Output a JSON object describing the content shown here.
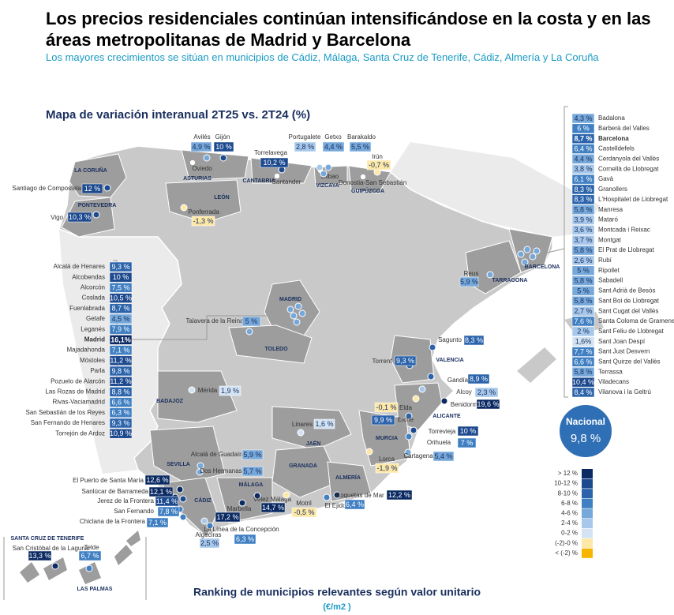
{
  "header": {
    "title": "Los precios residenciales continúan intensificándose en la costa y en las áreas metropolitanas de Madrid y Barcelona",
    "subtitle": "Los mayores crecimientos se sitúan en municipios de Cádiz, Málaga, Santa Cruz de Tenerife, Cádiz, Almería y La Coruña"
  },
  "map_title": "Mapa de variación interanual  2T25 vs. 2T24 (%)",
  "regions": [
    "LA CORUÑA",
    "ASTURIAS",
    "LEÓN",
    "PONTEVEDRA",
    "CANTABRIA",
    "VIZCAYA",
    "GUIPÚZCOA",
    "MADRID",
    "TOLEDO",
    "BADAJOZ",
    "VALENCIA",
    "ALICANTE",
    "MURCIA",
    "JAÉN",
    "GRANADA",
    "ALMERÍA",
    "SEVILLA",
    "CÁDIZ",
    "MÁLAGA",
    "TARRAGONA",
    "BARCELONA",
    "SANTA CRUZ DE TENERIFE",
    "LAS PALMAS"
  ],
  "place_names": [
    "Oviedo",
    "Santander",
    "Bilbao",
    "Donostia-San Sebastián"
  ],
  "cities": [
    {
      "name": "Avilés",
      "value": "4,9 %",
      "color": "#76a8da"
    },
    {
      "name": "Gijón",
      "value": "10 %",
      "color": "#1d4a8f"
    },
    {
      "name": "Torrelavega",
      "value": "10,2 %",
      "color": "#1d4a8f"
    },
    {
      "name": "Portugalete",
      "value": "2,8 %",
      "color": "#a7c8ea"
    },
    {
      "name": "Getxo",
      "value": "4,4 %",
      "color": "#76a8da"
    },
    {
      "name": "Barakaldo",
      "value": "5,5 %",
      "color": "#76a8da"
    },
    {
      "name": "Irún",
      "value": "-0,7 %",
      "color": "#fde8a8"
    },
    {
      "name": "Santiago de Compostela",
      "value": "12 %",
      "color": "#1d4a8f"
    },
    {
      "name": "Vigo",
      "value": "10,3 %",
      "color": "#1d4a8f"
    },
    {
      "name": "Ponferrada",
      "value": "-1,3 %",
      "color": "#fde8a8"
    },
    {
      "name": "Reus",
      "value": "5,9 %",
      "color": "#76a8da"
    },
    {
      "name": "Talavera de la Reina",
      "value": "5 %",
      "color": "#76a8da"
    },
    {
      "name": "Sagunto",
      "value": "8,3 %",
      "color": "#2c64ab"
    },
    {
      "name": "Torrent",
      "value": "9,3 %",
      "color": "#2c64ab"
    },
    {
      "name": "Gandía",
      "value": "8,9 %",
      "color": "#2c64ab"
    },
    {
      "name": "Alcoy",
      "value": "2,3 %",
      "color": "#a7c8ea"
    },
    {
      "name": "Benidorm",
      "value": "19,6 %",
      "color": "#0b2a63"
    },
    {
      "name": "Elda",
      "value": "-0,1 %",
      "color": "#fde8a8"
    },
    {
      "name": "Elche",
      "value": "9,9 %",
      "color": "#2c64ab"
    },
    {
      "name": "Torrevieja",
      "value": "10 %",
      "color": "#1d4a8f"
    },
    {
      "name": "Orihuela",
      "value": "7 %",
      "color": "#3f7fc2"
    },
    {
      "name": "Cartagena",
      "value": "5,4 %",
      "color": "#76a8da"
    },
    {
      "name": "Lorca",
      "value": "-1,9 %",
      "color": "#fde8a8"
    },
    {
      "name": "Mérida",
      "value": "1,9 %",
      "color": "#d3e3f3"
    },
    {
      "name": "Linares",
      "value": "1,6 %",
      "color": "#d3e3f3"
    },
    {
      "name": "Alcalá de Guadaíra",
      "value": "5,9 %",
      "color": "#76a8da"
    },
    {
      "name": "Dos Hermanas",
      "value": "5,7 %",
      "color": "#76a8da"
    },
    {
      "name": "El Puerto de Santa María",
      "value": "12,6 %",
      "color": "#0b2a63"
    },
    {
      "name": "Sanlúcar de Barrameda",
      "value": "12,1 %",
      "color": "#0b2a63"
    },
    {
      "name": "Jerez de la Frontera",
      "value": "11,4 %",
      "color": "#1d4a8f"
    },
    {
      "name": "San Fernando",
      "value": "7,8 %",
      "color": "#3f7fc2"
    },
    {
      "name": "Chiclana de la Frontera",
      "value": "7,1 %",
      "color": "#3f7fc2"
    },
    {
      "name": "Marbella",
      "value": "17,2 %",
      "color": "#0b2a63"
    },
    {
      "name": "Velez Málaga",
      "value": "14,7 %",
      "color": "#0b2a63"
    },
    {
      "name": "Motril",
      "value": "-0,5 %",
      "color": "#fde8a8"
    },
    {
      "name": "Roquetas de Mar",
      "value": "12,2 %",
      "color": "#0b2a63"
    },
    {
      "name": "El Ejido",
      "value": "6,4 %",
      "color": "#3f7fc2"
    },
    {
      "name": "La Línea de la Concepción",
      "value": "6,3 %",
      "color": "#3f7fc2"
    },
    {
      "name": "Algeciras",
      "value": "2,5 %",
      "color": "#a7c8ea"
    },
    {
      "name": "San Cristóbal de la Laguna",
      "value": "13,3 %",
      "color": "#0b2a63"
    },
    {
      "name": "Telde",
      "value": "6,7 %",
      "color": "#3f7fc2"
    }
  ],
  "madrid_list": [
    {
      "name": "Alcalá de Henares",
      "value": "9,3 %",
      "color": "#2c64ab"
    },
    {
      "name": "Alcobendas",
      "value": "10 %",
      "color": "#1d4a8f"
    },
    {
      "name": "Alcorcón",
      "value": "7,5 %",
      "color": "#3f7fc2"
    },
    {
      "name": "Coslada",
      "value": "10,5 %",
      "color": "#1d4a8f"
    },
    {
      "name": "Fuenlabrada",
      "value": "8,7 %",
      "color": "#2c64ab"
    },
    {
      "name": "Getafe",
      "value": "4,5 %",
      "color": "#76a8da"
    },
    {
      "name": "Leganés",
      "value": "7,9 %",
      "color": "#3f7fc2"
    },
    {
      "name": "Madrid",
      "value": "16,1%",
      "color": "#0b2a63",
      "bold": true
    },
    {
      "name": "Majadahonda",
      "value": "7,1 %",
      "color": "#3f7fc2"
    },
    {
      "name": "Móstoles",
      "value": "11,2 %",
      "color": "#1d4a8f"
    },
    {
      "name": "Parla",
      "value": "9,8 %",
      "color": "#2c64ab"
    },
    {
      "name": "Pozuelo de Alarcón",
      "value": "11,2 %",
      "color": "#1d4a8f"
    },
    {
      "name": "Las Rozas de Madrid",
      "value": "8,8 %",
      "color": "#2c64ab"
    },
    {
      "name": "Rivas-Vaciamadrid",
      "value": "6,6 %",
      "color": "#3f7fc2"
    },
    {
      "name": "San Sebastián de los Reyes",
      "value": "6,3 %",
      "color": "#3f7fc2"
    },
    {
      "name": "San Fernando de Henares",
      "value": "9,3 %",
      "color": "#2c64ab"
    },
    {
      "name": "Torrejón de Ardoz",
      "value": "10,9 %",
      "color": "#1d4a8f"
    }
  ],
  "barcelona_list": [
    {
      "name": "Badalona",
      "value": "4,3 %",
      "color": "#76a8da"
    },
    {
      "name": "Barberà del Valles",
      "value": "6 %",
      "color": "#3f7fc2"
    },
    {
      "name": "Barcelona",
      "value": "8,7 %",
      "color": "#2c64ab",
      "bold": true
    },
    {
      "name": "Castelldefels",
      "value": "6,4 %",
      "color": "#3f7fc2"
    },
    {
      "name": "Cerdanyola del Vallès",
      "value": "4,4 %",
      "color": "#76a8da"
    },
    {
      "name": "Cornellà de Llobregat",
      "value": "3,8 %",
      "color": "#a7c8ea"
    },
    {
      "name": "Gavà",
      "value": "6,1 %",
      "color": "#3f7fc2"
    },
    {
      "name": "Granollers",
      "value": "8,3 %",
      "color": "#2c64ab"
    },
    {
      "name": "L'Hospitalet de Llobregat",
      "value": "8,3 %",
      "color": "#2c64ab"
    },
    {
      "name": "Manresa",
      "value": "5,8 %",
      "color": "#76a8da"
    },
    {
      "name": "Mataró",
      "value": "3,9 %",
      "color": "#a7c8ea"
    },
    {
      "name": "Montcada i Reixac",
      "value": "3,6 %",
      "color": "#a7c8ea"
    },
    {
      "name": "Montgat",
      "value": "3,7 %",
      "color": "#a7c8ea"
    },
    {
      "name": "El Prat de Llobregat",
      "value": "5,8 %",
      "color": "#76a8da"
    },
    {
      "name": "Rubí",
      "value": "2,6 %",
      "color": "#a7c8ea"
    },
    {
      "name": "Ripollet",
      "value": "5 %",
      "color": "#76a8da"
    },
    {
      "name": "Sabadell",
      "value": "5,8 %",
      "color": "#76a8da"
    },
    {
      "name": "Sant Adrià de Besòs",
      "value": "5 %",
      "color": "#76a8da"
    },
    {
      "name": "Sant Boi de Llobregat",
      "value": "5,8 %",
      "color": "#76a8da"
    },
    {
      "name": "Sant Cugat del Vallès",
      "value": "2,7 %",
      "color": "#a7c8ea"
    },
    {
      "name": "Santa Coloma de Gramenet",
      "value": "7,6 %",
      "color": "#3f7fc2"
    },
    {
      "name": "Sant Feliu de Llobregat",
      "value": "2 %",
      "color": "#a7c8ea"
    },
    {
      "name": "Sant Joan Despí",
      "value": "1,6%",
      "color": "#d3e3f3"
    },
    {
      "name": "Sant Just Desvern",
      "value": "7,7 %",
      "color": "#3f7fc2"
    },
    {
      "name": "Sant Quirze del Vallès",
      "value": "6,6 %",
      "color": "#3f7fc2"
    },
    {
      "name": "Terrassa",
      "value": "5,8 %",
      "color": "#76a8da"
    },
    {
      "name": "Viladecans",
      "value": "10,4 %",
      "color": "#1d4a8f"
    },
    {
      "name": "Vilanova i la Geltrú",
      "value": "8,4 %",
      "color": "#2c64ab"
    }
  ],
  "national": {
    "label": "Nacional",
    "value": "9,8 %",
    "color": "#2f6fb5"
  },
  "legend": [
    {
      "label": "> 12 %",
      "color": "#0b2a63"
    },
    {
      "label": "10-12 %",
      "color": "#1d4a8f"
    },
    {
      "label": "8-10 %",
      "color": "#2c64ab"
    },
    {
      "label": "6-8 %",
      "color": "#3f7fc2"
    },
    {
      "label": "4-6 %",
      "color": "#76a8da"
    },
    {
      "label": "2-4 %",
      "color": "#a7c8ea"
    },
    {
      "label": "0-2 %",
      "color": "#d3e3f3"
    },
    {
      "label": "(-2)-0 %",
      "color": "#fde8a8"
    },
    {
      "label": "< (-2) %",
      "color": "#f7b500"
    }
  ],
  "footer": {
    "title": "Ranking de municipios relevantes según valor unitario",
    "unit": "(€/m2 )"
  }
}
